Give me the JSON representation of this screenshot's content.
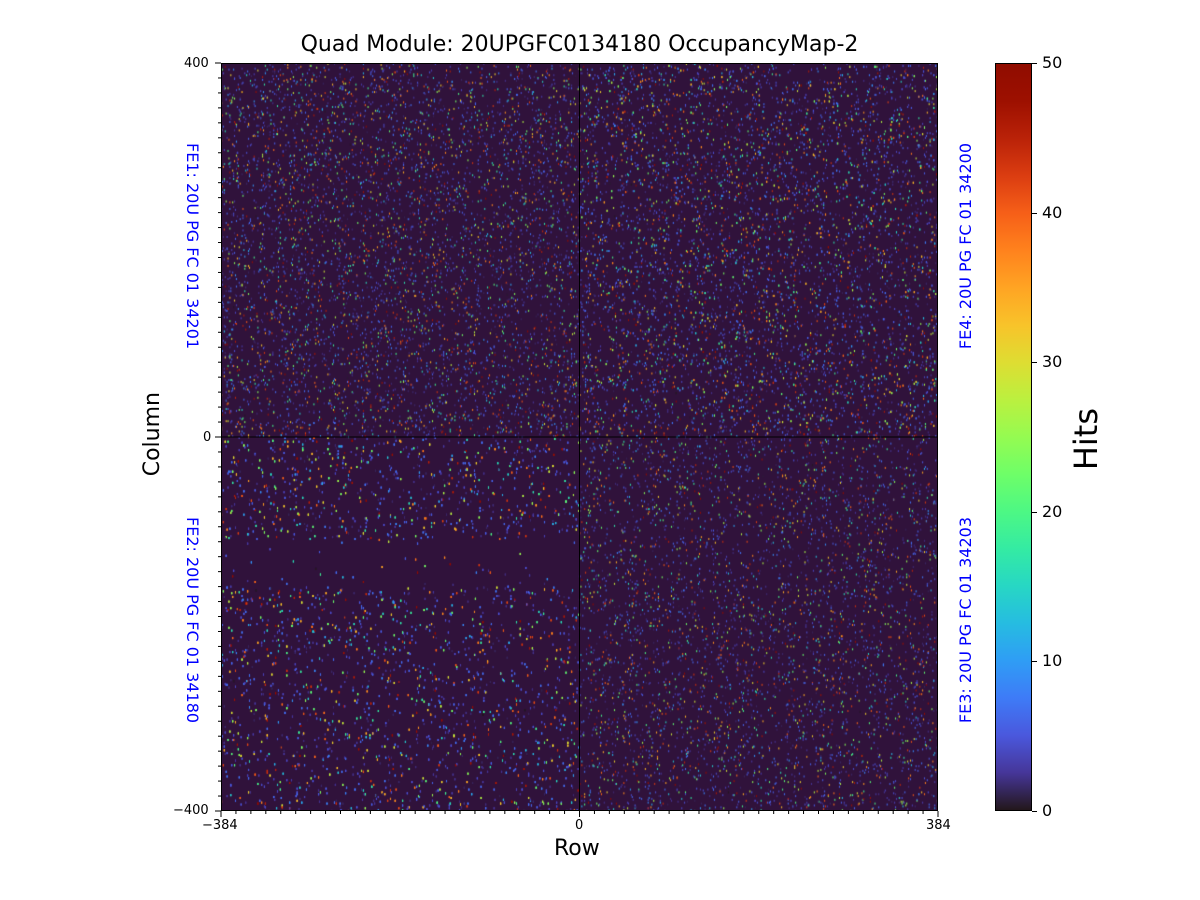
{
  "chart_data": {
    "type": "heatmap",
    "title": "Quad Module: 20UPGFC0134180 OccupancyMap-2",
    "xlabel": "Row",
    "ylabel": "Column",
    "xlim": [
      -384,
      384
    ],
    "ylim": [
      -400,
      400
    ],
    "xticks": [
      "−384",
      "0",
      "384"
    ],
    "xtick_values": [
      -384,
      0,
      384
    ],
    "yticks": [
      "400",
      "0",
      "−400"
    ],
    "ytick_values": [
      400,
      0,
      -400
    ],
    "minor_tick_step": 16,
    "grid": false,
    "divider_lines": {
      "x": 0,
      "y": 0
    },
    "colormap": "turbo",
    "background_value": 0,
    "colorbar": {
      "label": "Hits",
      "range": [
        0,
        50
      ],
      "ticks": [
        "0",
        "10",
        "20",
        "30",
        "40",
        "50"
      ],
      "tick_values": [
        0,
        10,
        20,
        30,
        40,
        50
      ],
      "placement": "right"
    },
    "annotations": [
      {
        "text": "FE1: 20U PG FC 01 34201",
        "quadrant": "top-left"
      },
      {
        "text": "FE4: 20U PG FC 01 34200",
        "quadrant": "top-right"
      },
      {
        "text": "FE2: 20U PG FC 01 34180",
        "quadrant": "bottom-left"
      },
      {
        "text": "FE3: 20U PG FC 01 34203",
        "quadrant": "bottom-right"
      }
    ],
    "regions": [
      {
        "quadrant": "top-left",
        "hit_density": 0.1
      },
      {
        "quadrant": "top-right",
        "hit_density": 0.13
      },
      {
        "quadrant": "bottom-left",
        "hit_density": 0.16,
        "quiet_band_y": [
          -160,
          -110
        ]
      },
      {
        "quadrant": "bottom-right",
        "hit_density": 0.08
      }
    ]
  },
  "colors": {
    "background": "#30123b",
    "annotation": "#0000ff",
    "divider": "#000000"
  }
}
